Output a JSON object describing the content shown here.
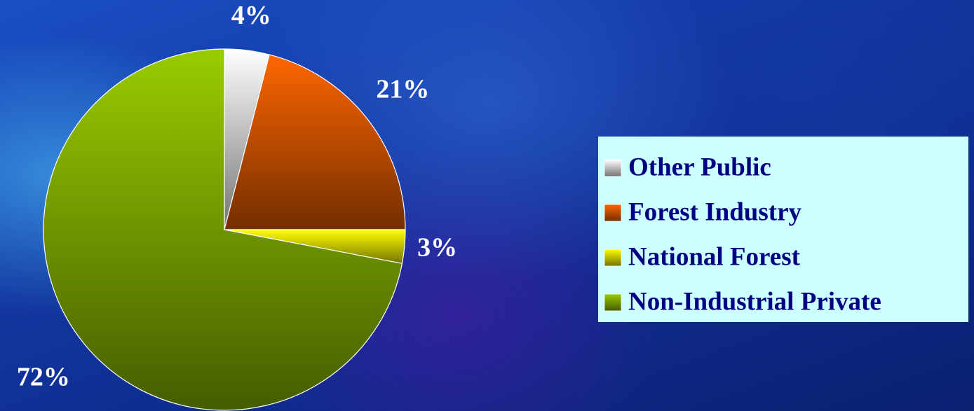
{
  "chart_data": {
    "type": "pie",
    "categories": [
      "Other Public",
      "Forest Industry",
      "National Forest",
      "Non-Industrial Private"
    ],
    "values": [
      4,
      21,
      3,
      72
    ],
    "value_labels": [
      "4%",
      "21%",
      "3%",
      "72%"
    ],
    "colors": [
      "#ffffff",
      "#ff6600",
      "#ffff00",
      "#99cc00"
    ],
    "legend": "right"
  }
}
